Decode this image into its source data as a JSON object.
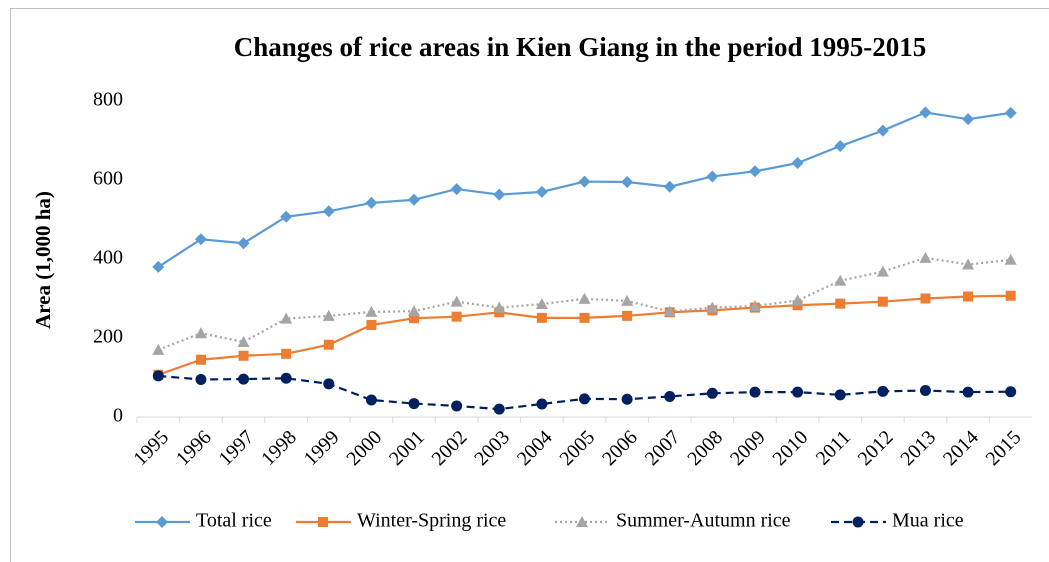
{
  "chart_data": {
    "type": "line",
    "title": "Changes of rice areas in Kien Giang in the period 1995-2015",
    "y_label": "Area (1,000 ha)",
    "categories": [
      "1995",
      "1996",
      "1997",
      "1998",
      "1999",
      "2000",
      "2001",
      "2002",
      "2003",
      "2004",
      "2005",
      "2006",
      "2007",
      "2008",
      "2009",
      "2010",
      "2011",
      "2012",
      "2013",
      "2014",
      "2015"
    ],
    "series": [
      {
        "name": "Total rice",
        "color": "#5b9bd5",
        "dash": "solid",
        "marker": "diamond",
        "values": [
          380,
          450,
          440,
          507,
          521,
          542,
          550,
          577,
          563,
          570,
          596,
          595,
          583,
          609,
          622,
          643,
          686,
          725,
          771,
          754,
          770
        ]
      },
      {
        "name": "Winter-Spring rice",
        "color": "#ed7d31",
        "dash": "solid",
        "marker": "square",
        "values": [
          107,
          145,
          155,
          160,
          183,
          233,
          250,
          254,
          265,
          251,
          251,
          256,
          265,
          270,
          277,
          283,
          287,
          292,
          300,
          305,
          307
        ]
      },
      {
        "name": "Summer-Autumn rice",
        "color": "#a5a5a5",
        "dash": "dotted",
        "marker": "triangle",
        "values": [
          170,
          212,
          190,
          249,
          256,
          266,
          268,
          292,
          277,
          286,
          299,
          294,
          267,
          277,
          281,
          295,
          345,
          368,
          403,
          386,
          398
        ]
      },
      {
        "name": "Mua rice",
        "color": "#002060",
        "dash": "dashed",
        "marker": "circle",
        "values": [
          104,
          95,
          96,
          98,
          84,
          43,
          34,
          28,
          20,
          33,
          46,
          45,
          52,
          60,
          63,
          63,
          56,
          65,
          67,
          63,
          64
        ]
      }
    ],
    "ylim": [
      0,
      800
    ],
    "yticks": [
      0,
      200,
      400,
      600,
      800
    ],
    "grid": false,
    "legend": "bottom"
  }
}
